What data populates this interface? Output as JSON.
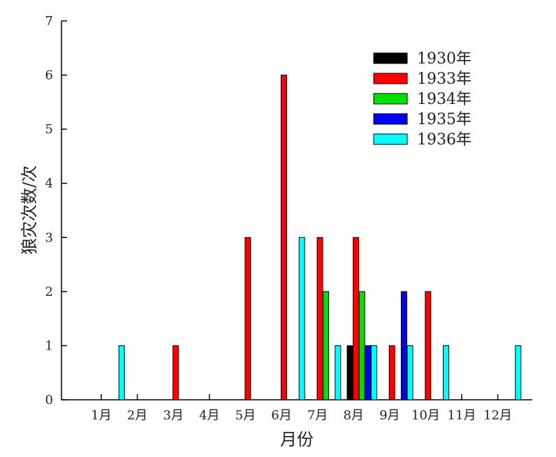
{
  "chart_data": {
    "type": "bar",
    "xlabel": "月份",
    "ylabel": "狼灾次数/次",
    "ylim": [
      0,
      7
    ],
    "yticks": [
      "0",
      "1",
      "2",
      "3",
      "4",
      "5",
      "6",
      "7"
    ],
    "categories": [
      "1月",
      "2月",
      "3月",
      "4月",
      "5月",
      "6月",
      "7月",
      "8月",
      "9月",
      "10月",
      "11月",
      "12月"
    ],
    "legend_position": "top-right",
    "grid": false,
    "series": [
      {
        "name": "1930年",
        "color": "#000000",
        "values": [
          0,
          0,
          0,
          0,
          0,
          0,
          0,
          1,
          0,
          0,
          0,
          0
        ]
      },
      {
        "name": "1933年",
        "color": "#ff0000",
        "values": [
          0,
          0,
          1,
          0,
          3,
          6,
          3,
          3,
          1,
          2,
          0,
          0
        ]
      },
      {
        "name": "1934年",
        "color": "#00e000",
        "values": [
          0,
          0,
          0,
          0,
          0,
          0,
          2,
          2,
          0,
          0,
          0,
          0
        ]
      },
      {
        "name": "1935年",
        "color": "#0000ff",
        "values": [
          0,
          0,
          0,
          0,
          0,
          0,
          0,
          1,
          2,
          0,
          0,
          0
        ]
      },
      {
        "name": "1936年",
        "color": "#00ffff",
        "values": [
          1,
          0,
          0,
          0,
          0,
          3,
          1,
          1,
          1,
          1,
          0,
          1
        ]
      }
    ]
  }
}
